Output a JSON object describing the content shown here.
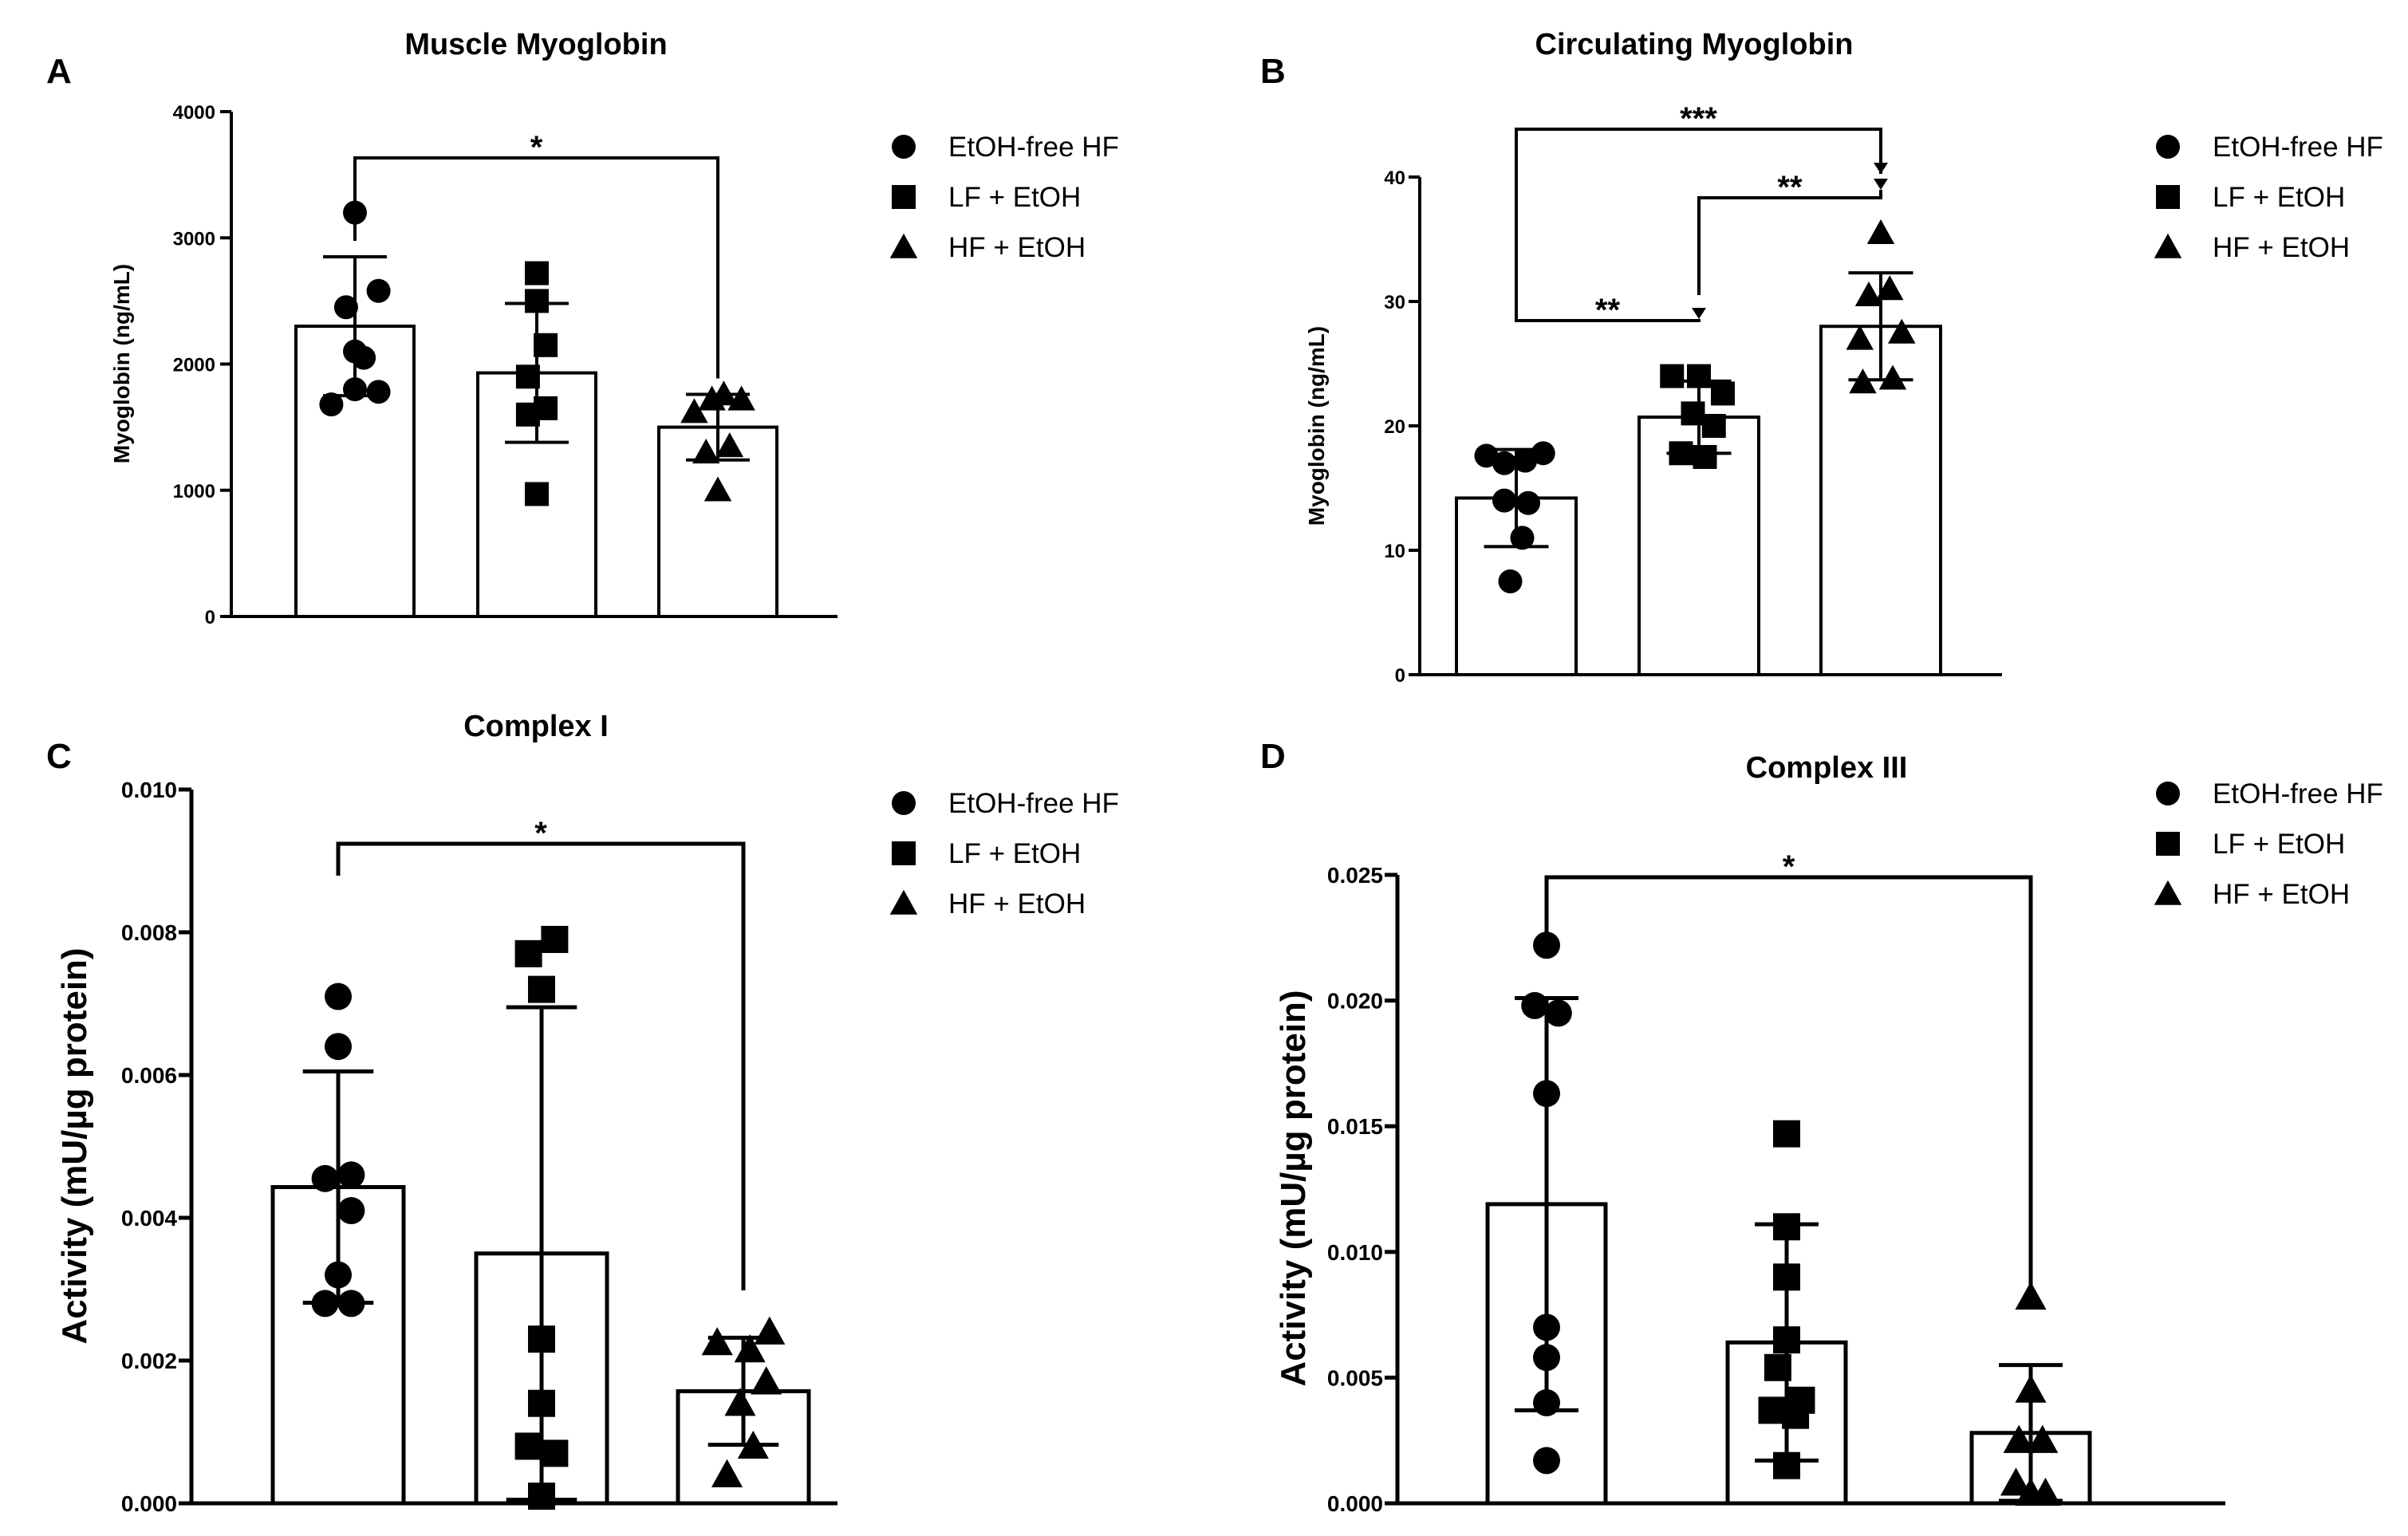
{
  "legend": [
    "EtOH-free HF",
    "LF + EtOH",
    "HF + EtOH"
  ],
  "chart_data": [
    {
      "panel": "A",
      "type": "bar",
      "title": "Muscle Myoglobin",
      "ylabel": "Myoglobin (ng/mL)",
      "xlabel": "",
      "ylim": [
        0,
        4000
      ],
      "yticks": [
        0,
        1000,
        2000,
        3000,
        4000
      ],
      "ytick_labels": [
        "0",
        "1000",
        "2000",
        "3000",
        "4000"
      ],
      "categories": [
        "EtOH-free HF",
        "LF + EtOH",
        "HF + EtOH"
      ],
      "series": [
        {
          "name": "EtOH-free HF",
          "marker": "circle",
          "mean": 2300,
          "sd": 550,
          "points": [
            {
              "dx": 0,
              "y": 3200
            },
            {
              "dx": 0.4,
              "y": 2580
            },
            {
              "dx": -0.15,
              "y": 2450
            },
            {
              "dx": 0,
              "y": 2100
            },
            {
              "dx": 0.15,
              "y": 2050
            },
            {
              "dx": -0.4,
              "y": 1680
            },
            {
              "dx": 0.4,
              "y": 1780
            },
            {
              "dx": 0,
              "y": 1800
            }
          ]
        },
        {
          "name": "LF + EtOH",
          "marker": "square",
          "mean": 1930,
          "sd": 550,
          "points": [
            {
              "dx": 0,
              "y": 2720
            },
            {
              "dx": 0,
              "y": 2500
            },
            {
              "dx": 0.15,
              "y": 2150
            },
            {
              "dx": -0.15,
              "y": 1900
            },
            {
              "dx": 0.15,
              "y": 1650
            },
            {
              "dx": -0.15,
              "y": 1600
            },
            {
              "dx": 0,
              "y": 970
            }
          ]
        },
        {
          "name": "HF + EtOH",
          "marker": "triangle",
          "mean": 1500,
          "sd": 260,
          "points": [
            {
              "dx": -0.4,
              "y": 1620
            },
            {
              "dx": -0.1,
              "y": 1720
            },
            {
              "dx": 0.1,
              "y": 1760
            },
            {
              "dx": 0.4,
              "y": 1720
            },
            {
              "dx": 0.2,
              "y": 1350
            },
            {
              "dx": -0.2,
              "y": 1300
            },
            {
              "dx": 0,
              "y": 1000
            }
          ]
        }
      ],
      "significance": [
        {
          "from": 0,
          "to": 2,
          "label": "*"
        }
      ]
    },
    {
      "panel": "B",
      "type": "bar",
      "title": "Circulating Myoglobin",
      "ylabel": "Myoglobin (ng/mL)",
      "xlabel": "",
      "ylim": [
        0,
        40
      ],
      "yticks": [
        0,
        10,
        20,
        30,
        40
      ],
      "ytick_labels": [
        "0",
        "10",
        "20",
        "30",
        "40"
      ],
      "categories": [
        "EtOH-free HF",
        "LF + EtOH",
        "HF + EtOH"
      ],
      "series": [
        {
          "name": "EtOH-free HF",
          "marker": "circle",
          "mean": 14.2,
          "sd": 3.9,
          "points": [
            {
              "dx": -0.5,
              "y": 17.6
            },
            {
              "dx": -0.2,
              "y": 17.0
            },
            {
              "dx": 0.15,
              "y": 17.2
            },
            {
              "dx": 0.45,
              "y": 17.8
            },
            {
              "dx": -0.2,
              "y": 14.0
            },
            {
              "dx": 0.2,
              "y": 13.8
            },
            {
              "dx": 0.1,
              "y": 11.0
            },
            {
              "dx": -0.1,
              "y": 7.5
            }
          ]
        },
        {
          "name": "LF + EtOH",
          "marker": "square",
          "mean": 20.7,
          "sd": 2.9,
          "points": [
            {
              "dx": -0.45,
              "y": 24.0
            },
            {
              "dx": 0,
              "y": 24.0
            },
            {
              "dx": 0.4,
              "y": 22.6
            },
            {
              "dx": -0.1,
              "y": 21.0
            },
            {
              "dx": 0.25,
              "y": 20.0
            },
            {
              "dx": -0.3,
              "y": 17.8
            },
            {
              "dx": 0.1,
              "y": 17.5
            }
          ]
        },
        {
          "name": "HF + EtOH",
          "marker": "triangle",
          "mean": 28.0,
          "sd": 4.3,
          "points": [
            {
              "dx": 0,
              "y": 35.5
            },
            {
              "dx": -0.2,
              "y": 30.5
            },
            {
              "dx": 0.15,
              "y": 31.0
            },
            {
              "dx": -0.35,
              "y": 27.0
            },
            {
              "dx": 0.35,
              "y": 27.5
            },
            {
              "dx": -0.3,
              "y": 23.5
            },
            {
              "dx": 0.2,
              "y": 23.8
            }
          ]
        }
      ],
      "significance": [
        {
          "from": 0,
          "to": 1,
          "label": "**"
        },
        {
          "from": 1,
          "to": 2,
          "label": "**"
        },
        {
          "from": 0,
          "to": 2,
          "label": "***"
        }
      ]
    },
    {
      "panel": "C",
      "type": "bar",
      "title": "Complex I",
      "ylabel": "Activity (mU/µg protein)",
      "xlabel": "",
      "ylim": [
        0,
        0.01
      ],
      "yticks": [
        0,
        0.002,
        0.004,
        0.006,
        0.008,
        0.01
      ],
      "ytick_labels": [
        "0.000",
        "0.002",
        "0.004",
        "0.006",
        "0.008",
        "0.010"
      ],
      "categories": [
        "EtOH-free HF",
        "LF + EtOH",
        "HF + EtOH"
      ],
      "series": [
        {
          "name": "EtOH-free HF",
          "marker": "circle",
          "mean": 0.00443,
          "sd": 0.00162,
          "points": [
            {
              "dx": 0,
              "y": 0.0071
            },
            {
              "dx": 0,
              "y": 0.0064
            },
            {
              "dx": -0.2,
              "y": 0.00455
            },
            {
              "dx": 0.2,
              "y": 0.0046
            },
            {
              "dx": 0.2,
              "y": 0.0041
            },
            {
              "dx": 0,
              "y": 0.0032
            },
            {
              "dx": -0.2,
              "y": 0.0028
            },
            {
              "dx": 0.2,
              "y": 0.0028
            }
          ]
        },
        {
          "name": "LF + EtOH",
          "marker": "square",
          "mean": 0.0035,
          "sd": 0.00345,
          "points": [
            {
              "dx": -0.2,
              "y": 0.0077
            },
            {
              "dx": 0.2,
              "y": 0.0079
            },
            {
              "dx": 0,
              "y": 0.0072
            },
            {
              "dx": 0,
              "y": 0.0023
            },
            {
              "dx": 0,
              "y": 0.0014
            },
            {
              "dx": -0.2,
              "y": 0.0008
            },
            {
              "dx": 0.2,
              "y": 0.0007
            },
            {
              "dx": 0,
              "y": 0.0001
            }
          ]
        },
        {
          "name": "HF + EtOH",
          "marker": "triangle",
          "mean": 0.00157,
          "sd": 0.00075,
          "points": [
            {
              "dx": -0.4,
              "y": 0.00225
            },
            {
              "dx": 0.1,
              "y": 0.00215
            },
            {
              "dx": 0.4,
              "y": 0.0024
            },
            {
              "dx": 0.35,
              "y": 0.0017
            },
            {
              "dx": -0.05,
              "y": 0.0014
            },
            {
              "dx": 0.15,
              "y": 0.0008
            },
            {
              "dx": -0.25,
              "y": 0.0004
            }
          ]
        }
      ],
      "significance": [
        {
          "from": 0,
          "to": 2,
          "label": "*"
        }
      ]
    },
    {
      "panel": "D",
      "type": "bar",
      "title": "Complex III",
      "ylabel": "Activity (mU/µg protein)",
      "xlabel": "",
      "ylim": [
        0,
        0.025
      ],
      "yticks": [
        0,
        0.005,
        0.01,
        0.015,
        0.02,
        0.025
      ],
      "ytick_labels": [
        "0.000",
        "0.005",
        "0.010",
        "0.015",
        "0.020",
        "0.025"
      ],
      "categories": [
        "EtOH-free HF",
        "LF + EtOH",
        "HF + EtOH"
      ],
      "series": [
        {
          "name": "EtOH-free HF",
          "marker": "circle",
          "mean": 0.0119,
          "sd": 0.0082,
          "points": [
            {
              "dx": 0,
              "y": 0.0222
            },
            {
              "dx": -0.2,
              "y": 0.0198
            },
            {
              "dx": 0.2,
              "y": 0.0195
            },
            {
              "dx": 0,
              "y": 0.0163
            },
            {
              "dx": 0,
              "y": 0.007
            },
            {
              "dx": 0,
              "y": 0.0058
            },
            {
              "dx": 0,
              "y": 0.004
            },
            {
              "dx": 0,
              "y": 0.0017
            }
          ]
        },
        {
          "name": "LF + EtOH",
          "marker": "square",
          "mean": 0.0064,
          "sd": 0.0047,
          "points": [
            {
              "dx": 0,
              "y": 0.0147
            },
            {
              "dx": 0,
              "y": 0.011
            },
            {
              "dx": 0,
              "y": 0.009
            },
            {
              "dx": 0,
              "y": 0.0065
            },
            {
              "dx": -0.15,
              "y": 0.0054
            },
            {
              "dx": -0.25,
              "y": 0.0037
            },
            {
              "dx": 0.15,
              "y": 0.0035
            },
            {
              "dx": 0.25,
              "y": 0.0041
            },
            {
              "dx": 0,
              "y": 0.0015
            }
          ]
        },
        {
          "name": "HF + EtOH",
          "marker": "triangle",
          "mean": 0.0028,
          "sd": 0.0027,
          "points": [
            {
              "dx": 0,
              "y": 0.0082
            },
            {
              "dx": 0,
              "y": 0.0045
            },
            {
              "dx": -0.2,
              "y": 0.0025
            },
            {
              "dx": 0.2,
              "y": 0.0025
            },
            {
              "dx": -0.25,
              "y": 0.0008
            },
            {
              "dx": 0,
              "y": 0.0004
            },
            {
              "dx": 0.25,
              "y": 0.0004
            }
          ]
        }
      ],
      "significance": [
        {
          "from": 0,
          "to": 2,
          "label": "*"
        }
      ]
    }
  ]
}
